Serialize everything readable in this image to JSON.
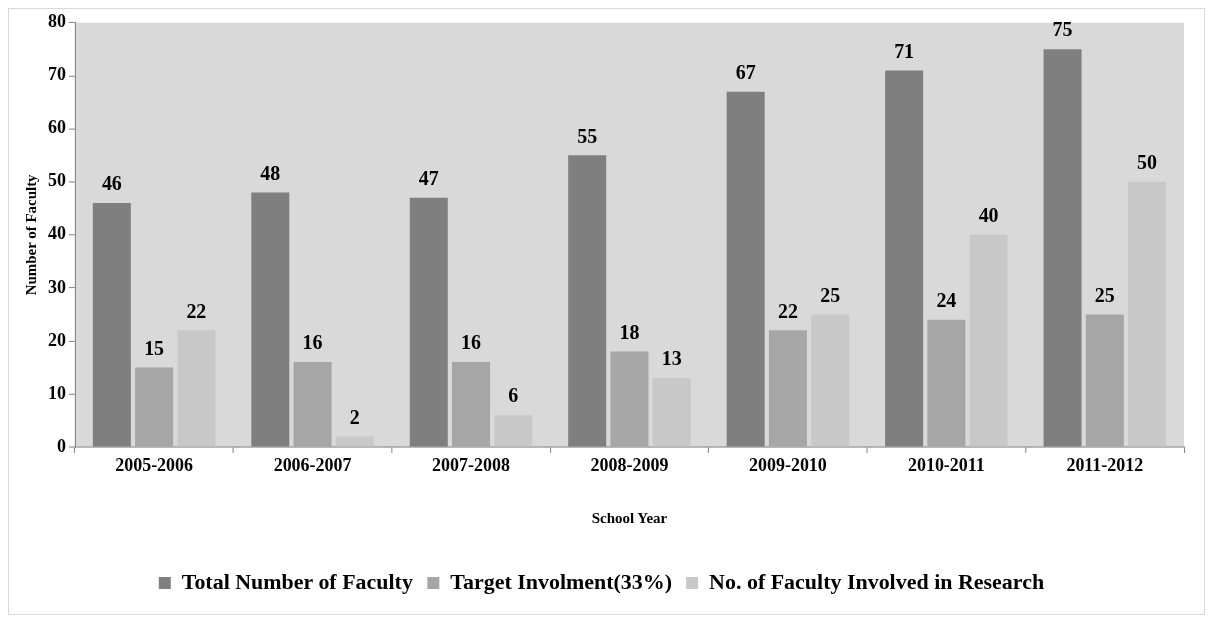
{
  "chart_data": {
    "type": "bar",
    "xlabel": "School Year",
    "ylabel": "Number of Faculty",
    "categories": [
      "2005-2006",
      "2006-2007",
      "2007-2008",
      "2008-2009",
      "2009-2010",
      "2010-2011",
      "2011-2012"
    ],
    "series": [
      {
        "name": "Total Number of Faculty",
        "color": "#7f7f7f",
        "values": [
          46,
          48,
          47,
          55,
          67,
          71,
          75
        ]
      },
      {
        "name": "Target Involment(33%)",
        "color": "#a6a6a6",
        "values": [
          15,
          16,
          16,
          18,
          22,
          24,
          25
        ]
      },
      {
        "name": "No. of Faculty Involved in Research",
        "color": "#c8c8c8",
        "values": [
          22,
          2,
          6,
          13,
          25,
          40,
          50
        ]
      }
    ],
    "ylim": [
      0,
      80
    ],
    "yticks": [
      0,
      10,
      20,
      30,
      40,
      50,
      60,
      70,
      80
    ],
    "grid": false,
    "legend": "bottom",
    "data_labels": true
  }
}
